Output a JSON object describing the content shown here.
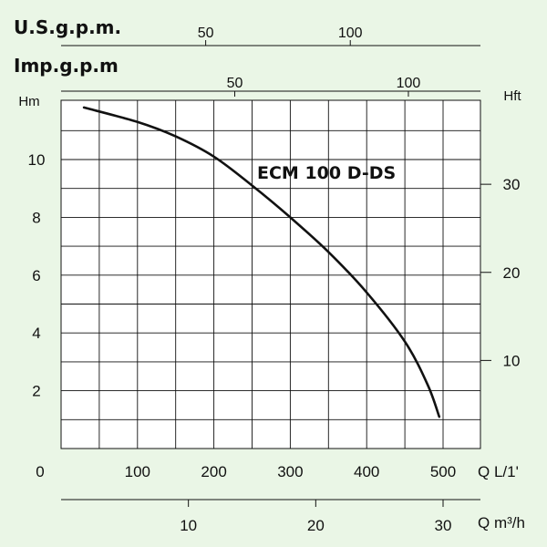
{
  "chart_data": {
    "type": "line",
    "title": "",
    "series": [
      {
        "name": "ECM 100 D-DS",
        "x": [
          30,
          100,
          150,
          200,
          250,
          300,
          350,
          400,
          450,
          480,
          495
        ],
        "y": [
          11.8,
          11.3,
          10.8,
          10.1,
          9.1,
          8.0,
          6.8,
          5.4,
          3.7,
          2.2,
          1.1
        ]
      }
    ],
    "xlim": [
      0,
      550
    ],
    "ylim": [
      0,
      12
    ],
    "grid": true,
    "axes": {
      "q_lmin": {
        "label": "Q  L/1'",
        "ticks": [
          "0",
          "100",
          "200",
          "300",
          "400",
          "500"
        ],
        "values": [
          0,
          100,
          200,
          300,
          400,
          500
        ]
      },
      "q_m3h": {
        "label": "Q  m³/h",
        "ticks": [
          "10",
          "20",
          "30"
        ],
        "values": [
          10,
          20,
          30
        ]
      },
      "us_gpm": {
        "label": "U.S.g.p.m.",
        "ticks": [
          "50",
          "100"
        ],
        "values": [
          50,
          100
        ]
      },
      "imp_gpm": {
        "label": "Imp.g.p.m",
        "ticks": [
          "50",
          "100"
        ],
        "values": [
          50,
          100
        ]
      },
      "head_m": {
        "label": "Hm",
        "ticks": [
          "2",
          "4",
          "6",
          "8",
          "10"
        ],
        "values": [
          2,
          4,
          6,
          8,
          10
        ]
      },
      "head_ft": {
        "label": "Hft",
        "ticks": [
          "10",
          "20",
          "30"
        ],
        "values": [
          10,
          20,
          30
        ]
      }
    }
  }
}
